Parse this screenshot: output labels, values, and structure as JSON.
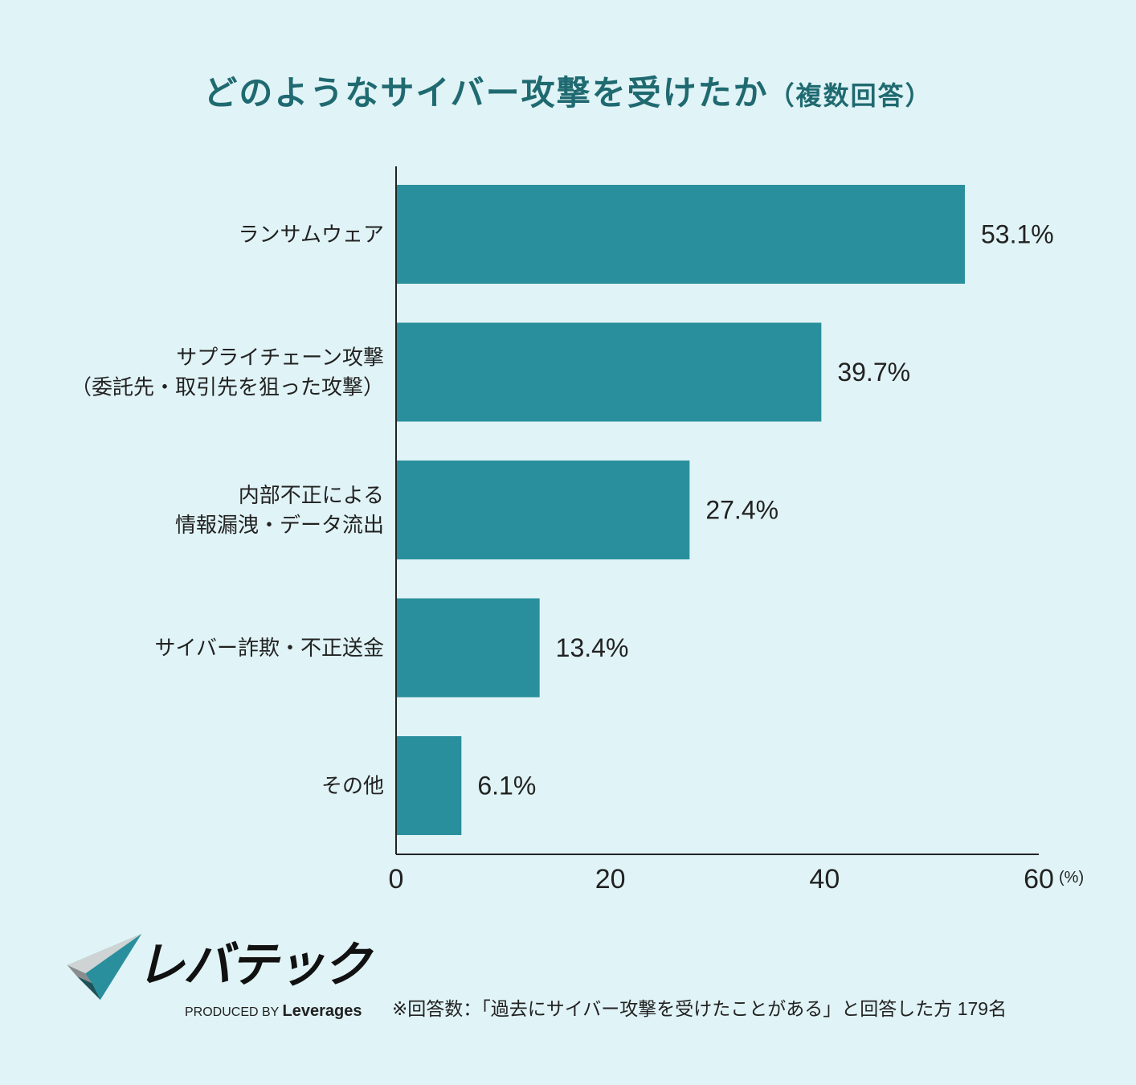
{
  "chart_data": {
    "type": "bar",
    "orientation": "horizontal",
    "title": "どのようなサイバー攻撃を受けたか",
    "subtitle": "（複数回答）",
    "categories": [
      [
        "ランサムウェア"
      ],
      [
        "サプライチェーン攻撃",
        "（委託先・取引先を狙った攻撃）"
      ],
      [
        "内部不正による",
        "情報漏洩・データ流出"
      ],
      [
        "サイバー詐欺・不正送金"
      ],
      [
        "その他"
      ]
    ],
    "values": [
      53.1,
      39.7,
      27.4,
      13.4,
      6.1
    ],
    "value_labels": [
      "53.1%",
      "39.7%",
      "27.4%",
      "13.4%",
      "6.1%"
    ],
    "xlim": [
      0,
      60
    ],
    "xticks": [
      "0",
      "20",
      "40",
      "60"
    ],
    "xunit": "(%)",
    "grid": false,
    "bar_color": "#2a8f9c",
    "title_color": "#1f6a70"
  },
  "logo": {
    "name": "レバテック",
    "produced_by": "PRODUCED BY",
    "brand": "Leverages"
  },
  "footnote": "※回答数：「過去にサイバー攻撃を受けたことがある」と回答した方 179名"
}
